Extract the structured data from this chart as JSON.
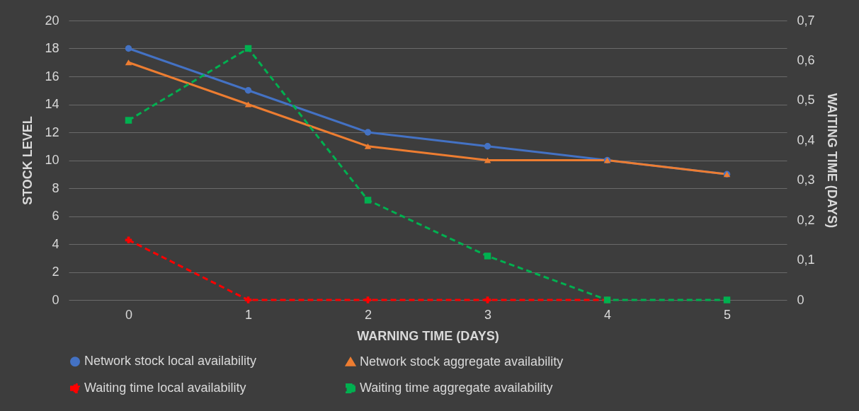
{
  "chart_data": {
    "type": "line",
    "xlabel": "WARNING TIME (DAYS)",
    "ylabel": "STOCK LEVEL",
    "y2label": "WAITING TIME (DAYS)",
    "categories": [
      "0",
      "1",
      "2",
      "3",
      "4",
      "5"
    ],
    "series": [
      {
        "name": "Network stock local availability",
        "color": "#4472c4",
        "values": [
          18,
          15,
          12,
          11,
          10,
          9
        ],
        "marker": "circle",
        "line_style": "solid"
      },
      {
        "name": "Network stock aggregate availability",
        "color": "#ed7d31",
        "values": [
          17,
          14,
          11,
          10,
          10,
          9
        ],
        "marker": "triangle",
        "line_style": "solid"
      },
      {
        "name": "Waiting time local availability",
        "color": "#ff0000",
        "values": [
          0.15,
          0,
          0,
          0,
          0,
          null
        ],
        "marker": "cross",
        "line_style": "dashed",
        "axis": "y2"
      },
      {
        "name": "Waiting time aggregate availability",
        "color": "#00b050",
        "values": [
          0.45,
          0.63,
          0.25,
          0.11,
          0,
          0
        ],
        "marker": "square",
        "line_style": "dashed",
        "axis": "y2"
      }
    ],
    "ylim": [
      0,
      20
    ],
    "yticks": [
      0,
      2,
      4,
      6,
      8,
      10,
      12,
      14,
      16,
      18,
      20
    ],
    "y2lim": [
      0,
      0.7
    ],
    "y2ticks": [
      {
        "value": 0,
        "label": "0"
      },
      {
        "value": 0.1,
        "label": "0,1"
      },
      {
        "value": 0.2,
        "label": "0,2"
      },
      {
        "value": 0.3,
        "label": "0,3"
      },
      {
        "value": 0.4,
        "label": "0,4"
      },
      {
        "value": 0.5,
        "label": "0,5"
      },
      {
        "value": 0.6,
        "label": "0,6"
      },
      {
        "value": 0.7,
        "label": "0,7"
      }
    ],
    "grid": "y",
    "legend": "bottom"
  }
}
